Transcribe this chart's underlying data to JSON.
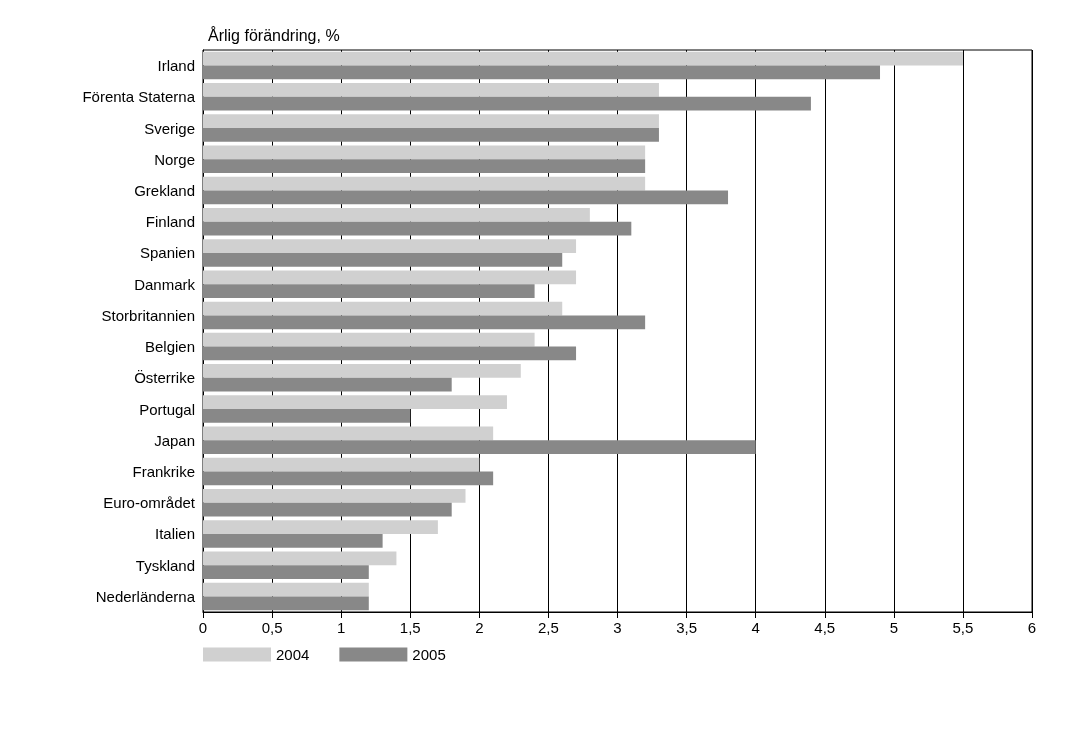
{
  "chart_data": {
    "type": "bar",
    "orientation": "horizontal",
    "xlabel": "Årlig förändring, %",
    "categories": [
      "Irland",
      "Förenta Staterna",
      "Sverige",
      "Norge",
      "Grekland",
      "Finland",
      "Spanien",
      "Danmark",
      "Storbritannien",
      "Belgien",
      "Österrike",
      "Portugal",
      "Japan",
      "Frankrike",
      "Euro-området",
      "Italien",
      "Tyskland",
      "Nederländerna"
    ],
    "series": [
      {
        "name": "2004",
        "color": "#d0d0d0",
        "values": [
          5.5,
          3.3,
          3.3,
          3.2,
          3.2,
          2.8,
          2.7,
          2.7,
          2.6,
          2.4,
          2.3,
          2.2,
          2.1,
          2.0,
          1.9,
          1.7,
          1.4,
          1.2
        ]
      },
      {
        "name": "2005",
        "color": "#888888",
        "values": [
          4.9,
          4.4,
          3.3,
          3.2,
          3.8,
          3.1,
          2.6,
          2.4,
          3.2,
          2.7,
          1.8,
          1.5,
          4.0,
          2.1,
          1.8,
          1.3,
          1.2,
          1.2
        ]
      }
    ],
    "xlim": [
      0,
      6
    ],
    "xticks": [
      0,
      {
        "value": 0.5,
        "label": "0,5"
      },
      1,
      {
        "value": 1.5,
        "label": "1,5"
      },
      2,
      {
        "value": 2.5,
        "label": "2,5"
      },
      3,
      {
        "value": 3.5,
        "label": "3,5"
      },
      4,
      {
        "value": 4.5,
        "label": "4,5"
      },
      5,
      {
        "value": 5.5,
        "label": "5,5"
      },
      6
    ],
    "grid": "x",
    "legend": "bottom left"
  }
}
